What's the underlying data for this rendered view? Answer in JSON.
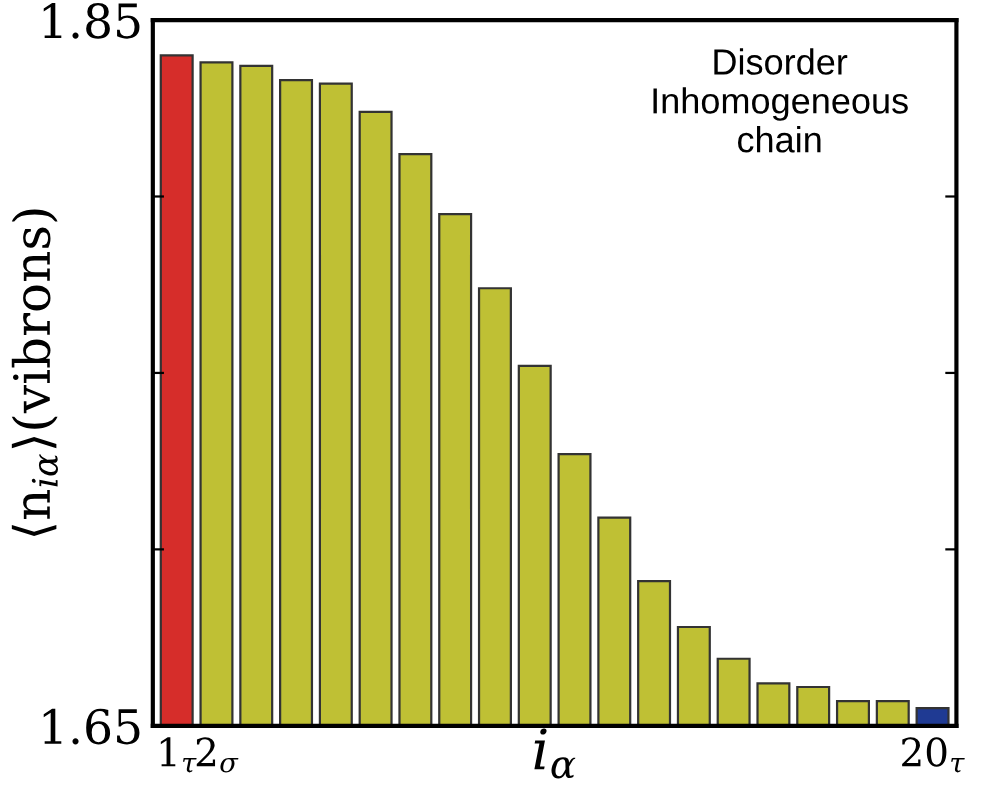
{
  "chart_data": {
    "type": "bar",
    "categories": [
      "1$_{τ}$",
      "2$_{σ}$",
      null,
      null,
      null,
      null,
      null,
      null,
      null,
      null,
      null,
      null,
      null,
      null,
      null,
      null,
      null,
      null,
      null,
      "20$_{τ}$"
    ],
    "values": [
      1.84,
      1.838,
      1.837,
      1.833,
      1.832,
      1.824,
      1.812,
      1.795,
      1.774,
      1.752,
      1.727,
      1.709,
      1.691,
      1.678,
      1.669,
      1.662,
      1.661,
      1.657,
      1.657,
      1.655
    ],
    "colors": [
      "#d62d2a",
      "#bfc034",
      "#bfc034",
      "#bfc034",
      "#bfc034",
      "#bfc034",
      "#bfc034",
      "#bfc034",
      "#bfc034",
      "#bfc034",
      "#bfc034",
      "#bfc034",
      "#bfc034",
      "#bfc034",
      "#bfc034",
      "#bfc034",
      "#bfc034",
      "#bfc034",
      "#bfc034",
      "#1f3a93"
    ],
    "xlabel": "i$_{α}$",
    "ylabel": "⟨n$_{iα}$⟩(vibrons)",
    "ylim": [
      1.65,
      1.85
    ],
    "yticks": [
      1.65,
      {
        "value": 1.7,
        "label": null
      },
      {
        "value": 1.75,
        "label": null
      },
      {
        "value": 1.8,
        "label": null
      },
      1.85
    ],
    "annotations": [
      "Disorder\nInhomogeneous\nchain"
    ],
    "grid": false,
    "legend": false
  }
}
